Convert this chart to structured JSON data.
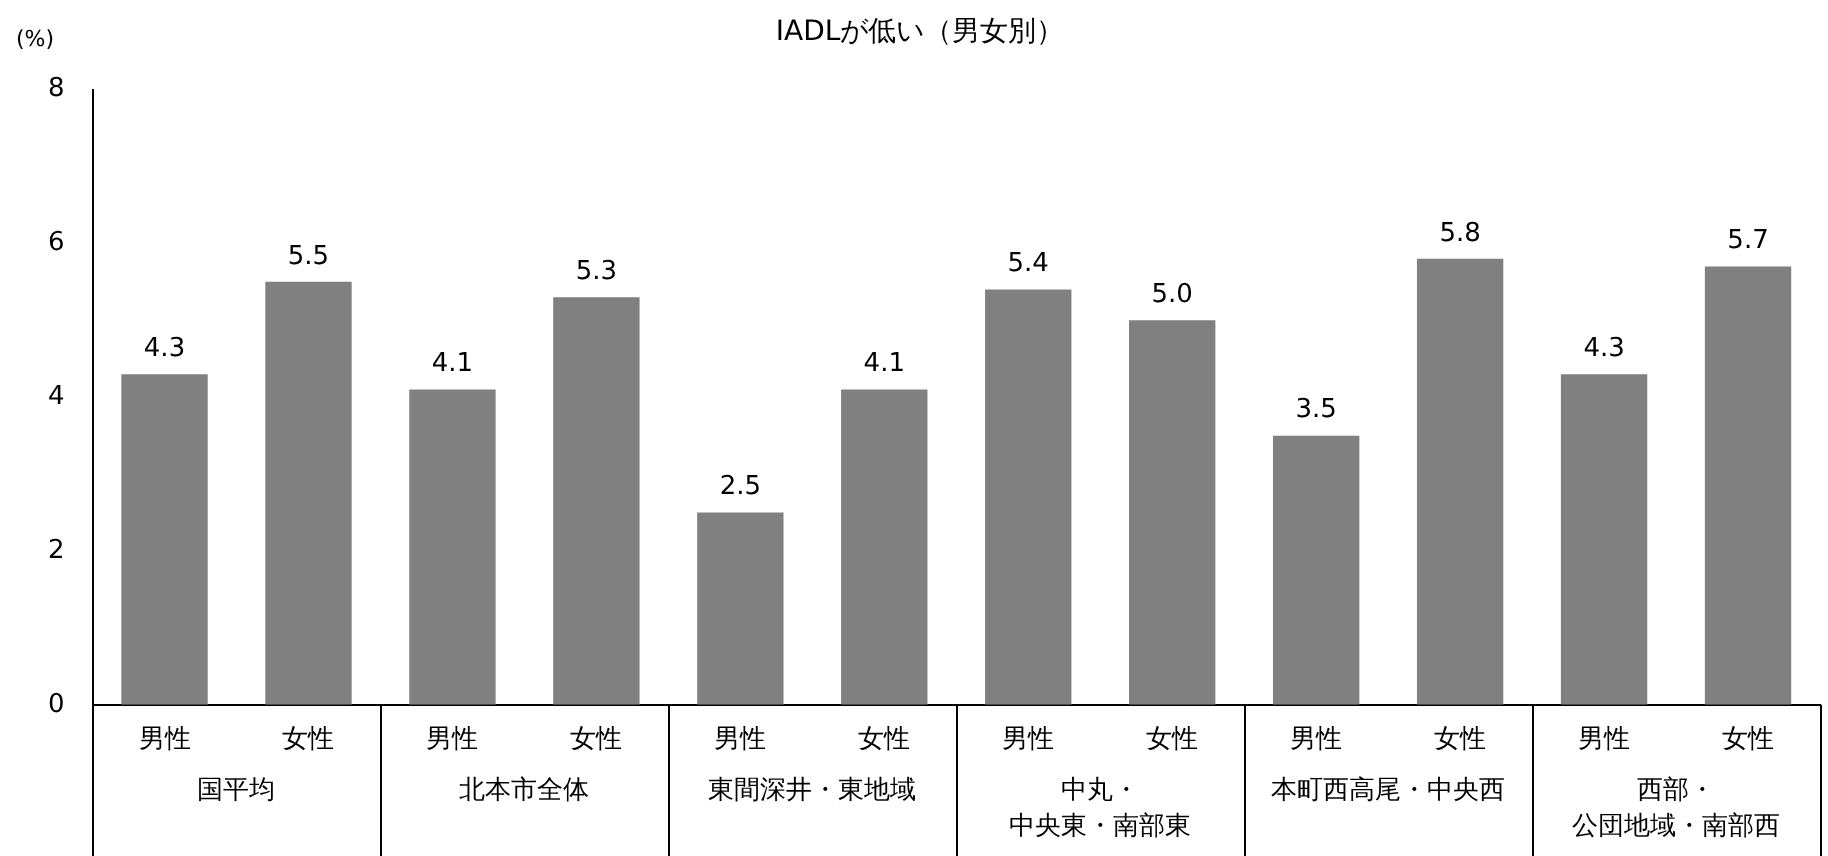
{
  "chart_data": {
    "type": "bar",
    "title": "IADLが低い（男女別）",
    "ylabel": "(%)",
    "categories": [
      "男性",
      "女性",
      "男性",
      "女性",
      "男性",
      "女性",
      "男性",
      "女性",
      "男性",
      "女性",
      "男性",
      "女性"
    ],
    "values": [
      4.3,
      5.5,
      4.1,
      5.3,
      2.5,
      4.1,
      5.4,
      5.0,
      3.5,
      5.8,
      4.3,
      5.7
    ],
    "value_labels": [
      "4.3",
      "5.5",
      "4.1",
      "5.3",
      "2.5",
      "4.1",
      "5.4",
      "5.0",
      "3.5",
      "5.8",
      "4.3",
      "5.7"
    ],
    "color": "#808080",
    "ylim": [
      0,
      8
    ],
    "yticks": [
      0,
      2,
      4,
      6,
      8
    ],
    "grid": false,
    "annotations": [
      "国平均",
      "北本市全体",
      "東間深井・東地域",
      "中丸・中央東・南部東",
      "本町西高尾・中央西",
      "西部・公団地域・南部西"
    ]
  }
}
